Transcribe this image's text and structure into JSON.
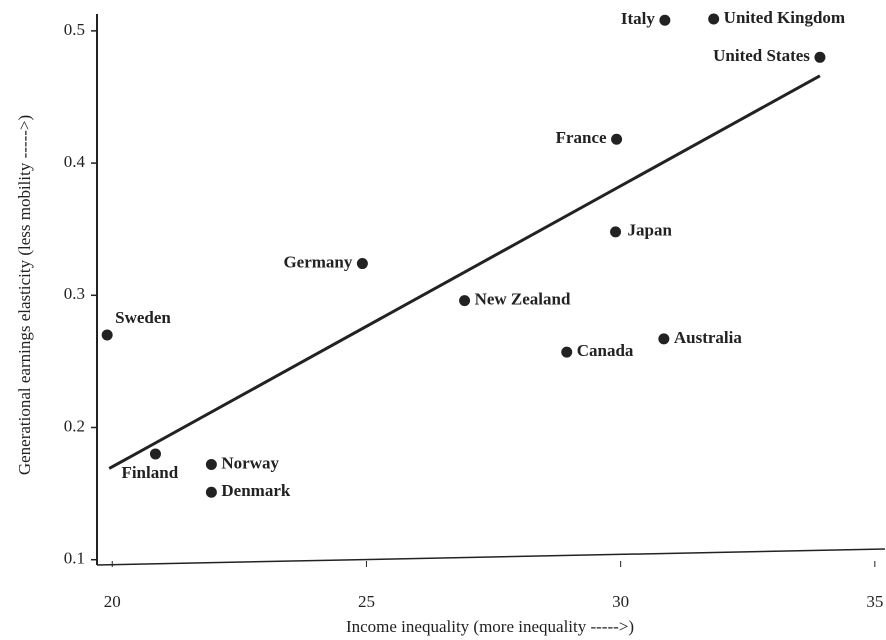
{
  "chart_data": {
    "type": "scatter",
    "xlabel": "Income inequality (more inequality ----->)",
    "ylabel": "Generational earnings elasticity (less mobility ----->)",
    "series": [
      {
        "name": null,
        "color": "#222222",
        "labels": [
          "Sweden",
          "Finland",
          "Norway",
          "Denmark",
          "Germany",
          "New Zealand",
          "Canada",
          "Japan",
          "France",
          "Australia",
          "Italy",
          "United Kingdom",
          "United States"
        ],
        "x": [
          19.9,
          20.85,
          21.95,
          21.95,
          24.92,
          26.93,
          28.94,
          29.9,
          29.92,
          30.85,
          30.87,
          31.83,
          33.92
        ],
        "values": [
          0.27,
          0.18,
          0.172,
          0.151,
          0.324,
          0.296,
          0.257,
          0.348,
          0.418,
          0.267,
          0.508,
          0.509,
          0.48
        ]
      }
    ],
    "trend": {
      "x": [
        19.94,
        33.92
      ],
      "values": [
        0.169,
        0.466
      ]
    },
    "xlim": [
      19.7,
      35.2
    ],
    "ylim": [
      0.096,
      0.512
    ],
    "xticks": [
      20,
      25,
      30,
      35
    ],
    "yticks": [
      0.1,
      0.2,
      0.3,
      0.4,
      0.5
    ],
    "grid": false
  }
}
